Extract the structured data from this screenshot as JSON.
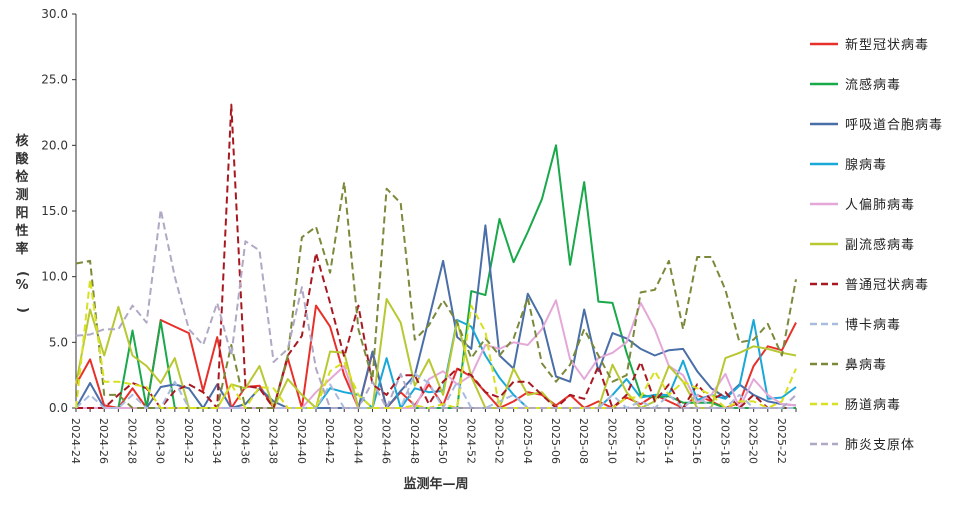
{
  "chart_data": {
    "type": "line",
    "xlabel": "监测年—周",
    "ylabel": "核酸检测阳性率(%)",
    "ylim": [
      0,
      30
    ],
    "yticks": [
      "0.0",
      "5.0",
      "10.0",
      "15.0",
      "20.0",
      "25.0",
      "30.0"
    ],
    "grid": false,
    "legend_position": "right",
    "x": [
      "2024-24",
      "2024-25",
      "2024-26",
      "2024-27",
      "2024-28",
      "2024-29",
      "2024-30",
      "2024-31",
      "2024-32",
      "2024-33",
      "2024-34",
      "2024-35",
      "2024-36",
      "2024-37",
      "2024-38",
      "2024-39",
      "2024-40",
      "2024-41",
      "2024-42",
      "2024-43",
      "2024-44",
      "2024-45",
      "2024-46",
      "2024-47",
      "2024-48",
      "2024-49",
      "2024-50",
      "2024-51",
      "2024-52",
      "2025-01",
      "2025-02",
      "2025-03",
      "2025-04",
      "2025-05",
      "2025-06",
      "2025-07",
      "2025-08",
      "2025-09",
      "2025-10",
      "2025-11",
      "2025-12",
      "2025-13",
      "2025-14",
      "2025-15",
      "2025-16",
      "2025-17",
      "2025-18",
      "2025-19",
      "2025-20",
      "2025-21",
      "2025-22",
      "2025-23"
    ],
    "xtick_labels": [
      "2024-24",
      "2024-26",
      "2024-28",
      "2024-30",
      "2024-32",
      "2024-34",
      "2024-36",
      "2024-38",
      "2024-40",
      "2024-42",
      "2024-44",
      "2024-46",
      "2024-48",
      "2024-50",
      "2024-52",
      "2025-02",
      "2025-04",
      "2025-06",
      "2025-08",
      "2025-10",
      "2025-12",
      "2025-14",
      "2025-16",
      "2025-18",
      "2025-20",
      "2025-22"
    ],
    "series": [
      {
        "name": "新型冠状病毒",
        "color": "#e8302a",
        "dash": "solid",
        "values": [
          1.8,
          3.7,
          0.2,
          0,
          1.5,
          0,
          6.7,
          6.2,
          5.7,
          1.3,
          5.4,
          0,
          1.6,
          1.7,
          0,
          3.8,
          0,
          7.8,
          6.2,
          2.5,
          0,
          4.2,
          0,
          1.2,
          0.2,
          1.8,
          0.2,
          3.0,
          2.4,
          1.2,
          0,
          0.5,
          1.2,
          1.0,
          0.2,
          1.0,
          0,
          0.5,
          0,
          0.8,
          0.3,
          1.0,
          0.5,
          0,
          1.0,
          0.5,
          0,
          0.4,
          3.2,
          4.7,
          4.4,
          6.5
        ]
      },
      {
        "name": "流感病毒",
        "color": "#19a84a",
        "dash": "solid",
        "values": [
          0,
          0,
          0,
          0,
          5.9,
          0,
          6.6,
          0,
          0,
          0,
          0,
          0,
          0,
          0,
          0,
          0,
          0,
          0,
          0,
          0,
          0,
          0,
          0,
          0,
          0,
          0,
          0,
          0,
          8.9,
          8.6,
          14.4,
          11.1,
          13.4,
          15.9,
          20.0,
          10.9,
          17.2,
          8.1,
          8.0,
          4.2,
          1.0,
          0.8,
          0.9,
          0.4,
          0.4,
          0.4,
          0,
          0,
          0,
          0,
          0,
          0
        ]
      },
      {
        "name": "呼吸道合胞病毒",
        "color": "#4a6ea8",
        "dash": "solid",
        "values": [
          0,
          1.9,
          0,
          0,
          0,
          0,
          1.6,
          1.8,
          1.5,
          0,
          1.8,
          0,
          0.3,
          1.5,
          0.5,
          0,
          0,
          0,
          0,
          0,
          0,
          4.3,
          0,
          1.3,
          2.5,
          6.8,
          11.2,
          5.4,
          4.5,
          13.9,
          4.0,
          3.0,
          8.7,
          6.7,
          2.4,
          2.0,
          7.5,
          2.8,
          5.7,
          5.3,
          4.5,
          4.0,
          4.4,
          4.5,
          2.8,
          1.5,
          0.8,
          1.8,
          1.0,
          0.5,
          0.3,
          0.2
        ]
      },
      {
        "name": "腺病毒",
        "color": "#19a8d8",
        "dash": "solid",
        "values": [
          0,
          0,
          0,
          0,
          0,
          0,
          0,
          0,
          0,
          0,
          0,
          0,
          0,
          0,
          0,
          0,
          0,
          0,
          1.5,
          1.2,
          1.0,
          0,
          3.8,
          0,
          1.5,
          1.2,
          1.3,
          6.7,
          6.2,
          4.0,
          2.3,
          1.0,
          0,
          0,
          0,
          0,
          0,
          0,
          1.0,
          2.2,
          0.8,
          1.0,
          1.0,
          3.6,
          0.6,
          1.0,
          0.7,
          1.7,
          6.7,
          0.7,
          0.8,
          1.6
        ]
      },
      {
        "name": "人偏肺病毒",
        "color": "#e4a8d8",
        "dash": "solid",
        "values": [
          0,
          0,
          0,
          0,
          0,
          0,
          0,
          0,
          0,
          0,
          0,
          0,
          0,
          0,
          0,
          0,
          0,
          1.2,
          2.2,
          3.2,
          0,
          0,
          0,
          0,
          0,
          2.2,
          2.8,
          1.8,
          2.5,
          4.8,
          4.5,
          5.0,
          4.8,
          6.0,
          8.2,
          3.7,
          2.2,
          3.8,
          4.2,
          5.0,
          8.0,
          6.0,
          3.2,
          2.5,
          0.4,
          1.0,
          2.6,
          0,
          2.2,
          1.0,
          0.3,
          0.2
        ]
      },
      {
        "name": "副流感病毒",
        "color": "#b8c832",
        "dash": "solid",
        "values": [
          1.8,
          7.5,
          4.0,
          7.7,
          4.0,
          3.2,
          1.9,
          3.8,
          0,
          0,
          0,
          1.8,
          1.5,
          3.2,
          0,
          2.2,
          1.0,
          0,
          4.3,
          4.2,
          0,
          0,
          8.3,
          6.5,
          1.7,
          3.7,
          1.0,
          6.6,
          2.4,
          0,
          0,
          3.0,
          1.0,
          1.2,
          0,
          0,
          0,
          0,
          3.3,
          1.2,
          0,
          0.5,
          3.2,
          2.0,
          0,
          0,
          3.8,
          4.2,
          4.7,
          4.5,
          4.2,
          4.0
        ]
      },
      {
        "name": "普通冠状病毒",
        "color": "#a81820",
        "dash": "dash",
        "values": [
          0,
          0,
          0,
          1.0,
          1.9,
          1.5,
          0,
          1.3,
          1.8,
          1.2,
          0,
          23.1,
          1.7,
          1.5,
          0,
          4.0,
          5.5,
          11.8,
          8.0,
          3.9,
          7.8,
          1.8,
          1.0,
          2.5,
          2.5,
          0.3,
          2.0,
          3.0,
          2.5,
          1.2,
          0.8,
          2.0,
          2.0,
          1.0,
          0,
          1.0,
          0.7,
          3.2,
          0,
          1.0,
          3.5,
          0.5,
          1.8,
          0,
          1.8,
          0.6,
          1.2,
          0,
          1.0,
          0,
          0,
          0
        ]
      },
      {
        "name": "博卡病毒",
        "color": "#a8bce0",
        "dash": "dash",
        "values": [
          0,
          1.0,
          0,
          0,
          1.0,
          0,
          0,
          2.0,
          0,
          0,
          0,
          0,
          0,
          0,
          0,
          0,
          0,
          0,
          1.8,
          0,
          0,
          0,
          0,
          0,
          2.6,
          1.9,
          0,
          2.0,
          0,
          0,
          0.5,
          1.0,
          0,
          0,
          0,
          0,
          0,
          0,
          1.0,
          0,
          0.5,
          0,
          1.0,
          0,
          1.0,
          0,
          0,
          1.0,
          0,
          0,
          0,
          0
        ]
      },
      {
        "name": "鼻病毒",
        "color": "#7a8a3a",
        "dash": "dash",
        "values": [
          11.0,
          11.2,
          1.0,
          1.0,
          0,
          0,
          0,
          0,
          0,
          0,
          0,
          4.8,
          0,
          0,
          0,
          4.0,
          13.0,
          13.8,
          10.3,
          17.2,
          6.0,
          2.2,
          16.7,
          15.6,
          5.2,
          6.3,
          8.2,
          6.5,
          3.8,
          5.3,
          4.0,
          5.3,
          8.4,
          3.4,
          2.0,
          3.3,
          6.0,
          4.0,
          2.0,
          2.5,
          8.8,
          9.0,
          11.2,
          6.0,
          11.5,
          11.5,
          9.0,
          5.0,
          5.2,
          6.4,
          4.0,
          9.8
        ]
      },
      {
        "name": "肠道病毒",
        "color": "#d8e020",
        "dash": "dash",
        "values": [
          0,
          9.8,
          2.0,
          2.0,
          1.8,
          1.6,
          0,
          0,
          0,
          0,
          0,
          1.8,
          0,
          1.6,
          1.5,
          0,
          0,
          0,
          2.8,
          3.5,
          1.0,
          0,
          0,
          0,
          0.2,
          0,
          0.3,
          0,
          7.8,
          5.8,
          0,
          0,
          0,
          0,
          0,
          0,
          0,
          0,
          0,
          0.8,
          0.8,
          2.8,
          1.0,
          2.0,
          1.5,
          1.0,
          0,
          0.5,
          0.5,
          0,
          0.5,
          3.0
        ]
      },
      {
        "name": "肺炎支原体",
        "color": "#b0a8c4",
        "dash": "dash",
        "values": [
          5.5,
          5.6,
          6.0,
          6.0,
          7.8,
          6.5,
          15.1,
          10.0,
          6.0,
          4.8,
          8.0,
          4.0,
          12.7,
          12.0,
          3.5,
          4.5,
          9.2,
          3.0,
          0,
          0,
          0,
          2.0,
          0,
          2.6,
          0,
          0,
          0,
          0,
          0,
          0,
          0,
          0,
          0,
          0,
          0,
          0,
          0,
          0,
          0,
          0,
          0,
          0,
          0,
          0,
          0,
          0,
          0,
          0,
          0,
          0,
          0,
          1.0
        ]
      }
    ]
  }
}
